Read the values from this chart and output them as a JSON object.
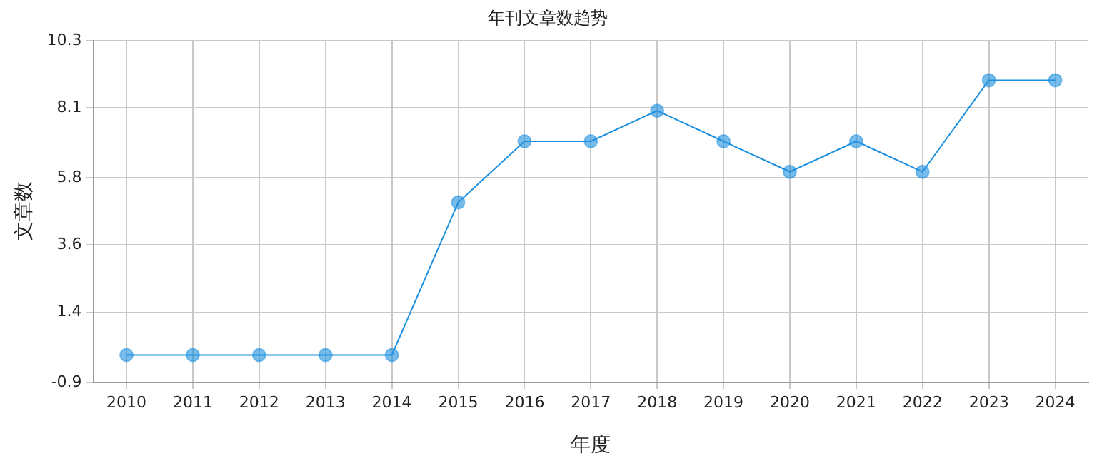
{
  "chart_data": {
    "type": "line",
    "title": "年刊文章数趋势",
    "xlabel": "年度",
    "ylabel": "文章数",
    "categories": [
      "2010",
      "2011",
      "2012",
      "2013",
      "2014",
      "2015",
      "2016",
      "2017",
      "2018",
      "2019",
      "2020",
      "2021",
      "2022",
      "2023",
      "2024"
    ],
    "series": [
      {
        "color": "#1e90e0",
        "values": [
          0,
          0,
          0,
          0,
          0,
          5,
          7,
          7,
          8,
          7,
          6,
          7,
          6,
          9,
          9
        ]
      }
    ],
    "ylim": [
      -0.9,
      10.3
    ],
    "yticks": [
      -0.9,
      1.4,
      3.6,
      5.8,
      8.1,
      10.3
    ],
    "grid": true,
    "legend": false,
    "marker": "circle",
    "line_style": "solid"
  }
}
